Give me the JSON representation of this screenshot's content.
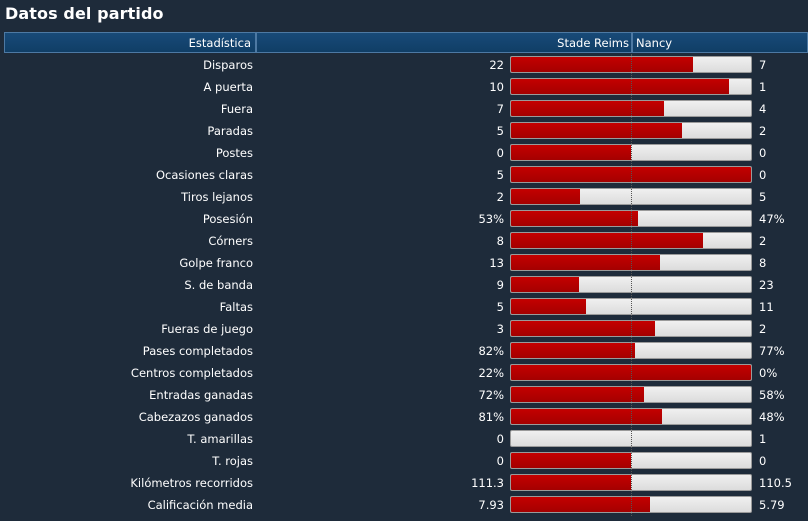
{
  "title": "Datos del partido",
  "header": {
    "stat": "Estadística",
    "home": "Stade Reims",
    "away": "Nancy"
  },
  "colors": {
    "home_fill": "#b00000",
    "away_fill": "#e6e6e6",
    "background": "#1e2b3a"
  },
  "stats": [
    {
      "label": "Disparos",
      "home": "22",
      "away": "7",
      "home_share": 0.7586
    },
    {
      "label": "A puerta",
      "home": "10",
      "away": "1",
      "home_share": 0.9091
    },
    {
      "label": "Fuera",
      "home": "7",
      "away": "4",
      "home_share": 0.6364
    },
    {
      "label": "Paradas",
      "home": "5",
      "away": "2",
      "home_share": 0.7143
    },
    {
      "label": "Postes",
      "home": "0",
      "away": "0",
      "home_share": 0.5
    },
    {
      "label": "Ocasiones claras",
      "home": "5",
      "away": "0",
      "home_share": 1.0
    },
    {
      "label": "Tiros lejanos",
      "home": "2",
      "away": "5",
      "home_share": 0.2857
    },
    {
      "label": "Posesión",
      "home": "53%",
      "away": "47%",
      "home_share": 0.53
    },
    {
      "label": "Córners",
      "home": "8",
      "away": "2",
      "home_share": 0.8
    },
    {
      "label": "Golpe franco",
      "home": "13",
      "away": "8",
      "home_share": 0.619
    },
    {
      "label": "S. de banda",
      "home": "9",
      "away": "23",
      "home_share": 0.2813
    },
    {
      "label": "Faltas",
      "home": "5",
      "away": "11",
      "home_share": 0.3125
    },
    {
      "label": "Fueras de juego",
      "home": "3",
      "away": "2",
      "home_share": 0.6
    },
    {
      "label": "Pases completados",
      "home": "82%",
      "away": "77%",
      "home_share": 0.5157
    },
    {
      "label": "Centros completados",
      "home": "22%",
      "away": "0%",
      "home_share": 1.0
    },
    {
      "label": "Entradas ganadas",
      "home": "72%",
      "away": "58%",
      "home_share": 0.5538
    },
    {
      "label": "Cabezazos ganados",
      "home": "81%",
      "away": "48%",
      "home_share": 0.6279
    },
    {
      "label": "T. amarillas",
      "home": "0",
      "away": "1",
      "home_share": 0.0
    },
    {
      "label": "T. rojas",
      "home": "0",
      "away": "0",
      "home_share": 0.5
    },
    {
      "label": "Kilómetros recorridos",
      "home": "111.3",
      "away": "110.5",
      "home_share": 0.5018
    },
    {
      "label": "Calificación media",
      "home": "7.93",
      "away": "5.79",
      "home_share": 0.578
    }
  ]
}
